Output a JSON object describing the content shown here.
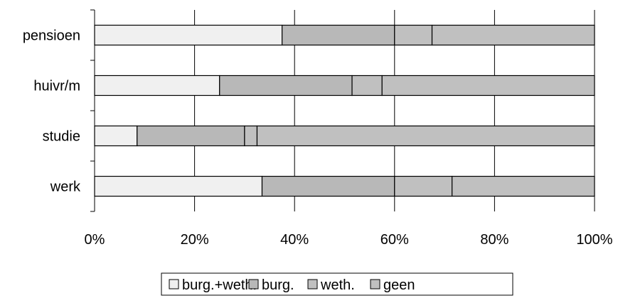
{
  "chart_data": {
    "type": "bar",
    "orientation": "horizontal",
    "stacked": "percent",
    "title": "",
    "xlabel": "",
    "ylabel": "",
    "categories": [
      "pensioen",
      "huivr/m",
      "studie",
      "werk"
    ],
    "series": [
      {
        "name": "burg.+weth.",
        "color": "#f0f0f0",
        "values": [
          37.5,
          25,
          8.5,
          33.5
        ]
      },
      {
        "name": "burg.",
        "color": "#b8b8b8",
        "values": [
          22.5,
          26.5,
          21.5,
          26.5
        ]
      },
      {
        "name": "weth.",
        "color": "#c0c0c0",
        "values": [
          7.5,
          6,
          2.5,
          11.5
        ]
      },
      {
        "name": "geen",
        "color": "#c0c0c0",
        "values": [
          32.5,
          42.5,
          67.5,
          28.5
        ]
      }
    ],
    "x_ticks": [
      "0%",
      "20%",
      "40%",
      "60%",
      "80%",
      "100%"
    ],
    "xlim": [
      0,
      100
    ],
    "grid": "vertical",
    "legend_position": "bottom"
  }
}
